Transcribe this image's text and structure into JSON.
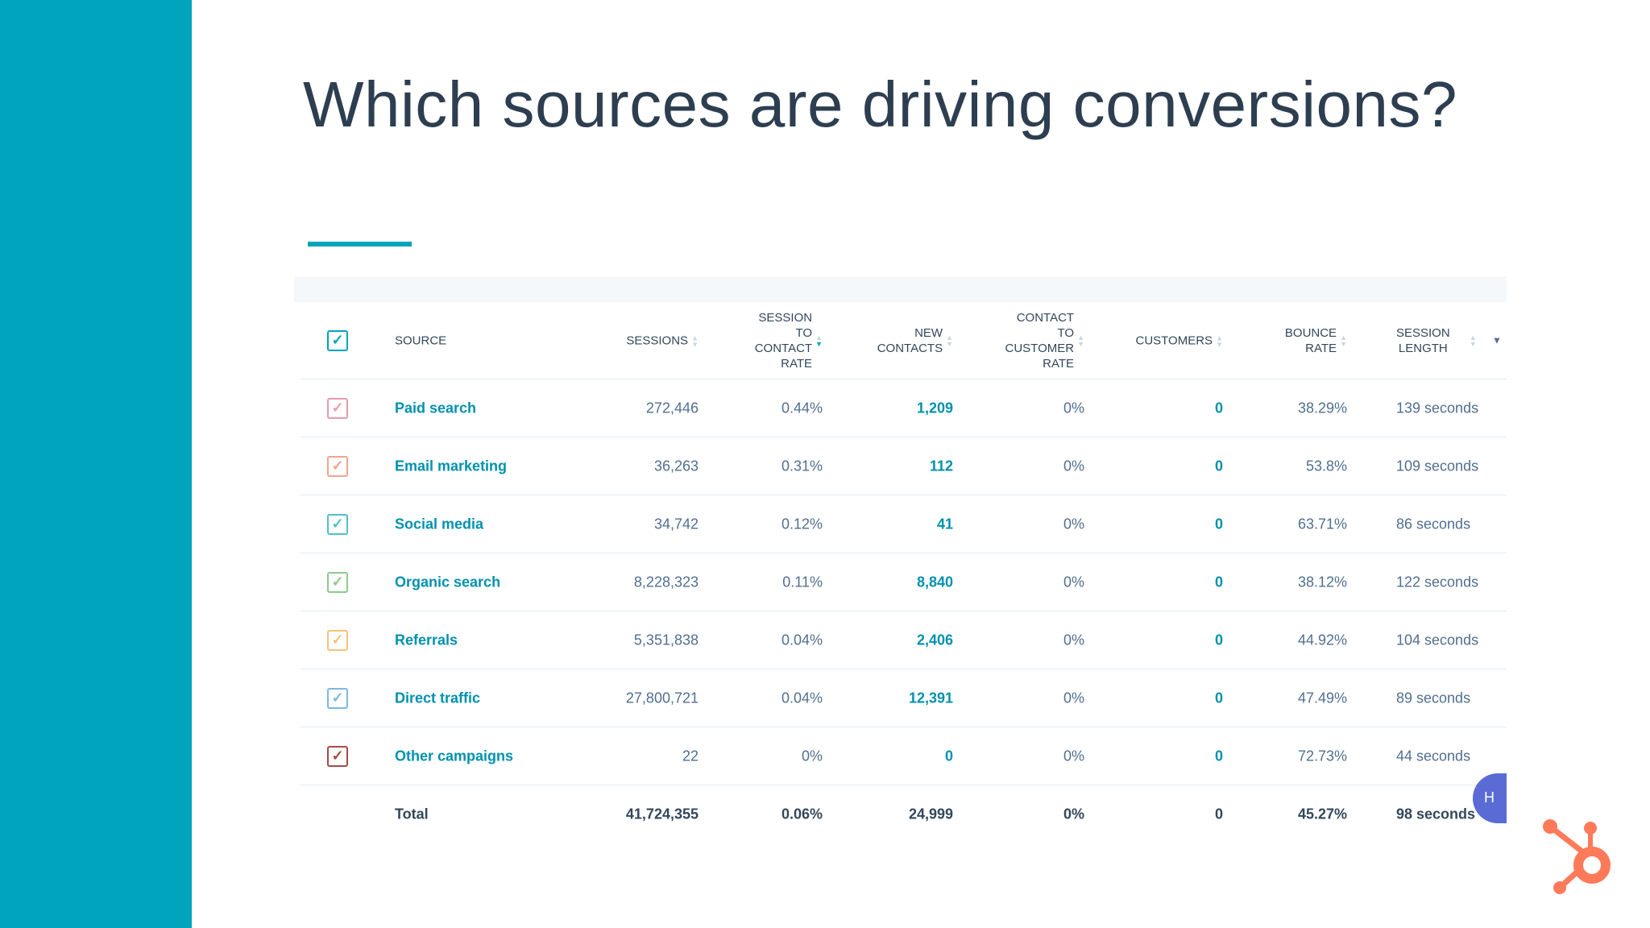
{
  "title": "Which sources are driving conversions?",
  "table": {
    "headers": {
      "source": "SOURCE",
      "sessions": "SESSIONS",
      "stc": [
        "SESSION",
        "TO",
        "CONTACT",
        "RATE"
      ],
      "new_contacts": [
        "NEW",
        "CONTACTS"
      ],
      "ctc": [
        "CONTACT",
        "TO",
        "CUSTOMER",
        "RATE"
      ],
      "customers": "CUSTOMERS",
      "bounce": [
        "BOUNCE",
        "RATE"
      ],
      "length": [
        "SESSION",
        "LENGTH"
      ]
    },
    "rows": [
      {
        "source": "Paid search",
        "sessions": "272,446",
        "stc": "0.44%",
        "new_contacts": "1,209",
        "ctc": "0%",
        "customers": "0",
        "bounce": "38.29%",
        "length": "139 seconds",
        "color": "#e79bb0"
      },
      {
        "source": "Email marketing",
        "sessions": "36,263",
        "stc": "0.31%",
        "new_contacts": "112",
        "ctc": "0%",
        "customers": "0",
        "bounce": "53.8%",
        "length": "109 seconds",
        "color": "#f0a58c"
      },
      {
        "source": "Social media",
        "sessions": "34,742",
        "stc": "0.12%",
        "new_contacts": "41",
        "ctc": "0%",
        "customers": "0",
        "bounce": "63.71%",
        "length": "86 seconds",
        "color": "#4fc1c9"
      },
      {
        "source": "Organic search",
        "sessions": "8,228,323",
        "stc": "0.11%",
        "new_contacts": "8,840",
        "ctc": "0%",
        "customers": "0",
        "bounce": "38.12%",
        "length": "122 seconds",
        "color": "#8fc98a"
      },
      {
        "source": "Referrals",
        "sessions": "5,351,838",
        "stc": "0.04%",
        "new_contacts": "2,406",
        "ctc": "0%",
        "customers": "0",
        "bounce": "44.92%",
        "length": "104 seconds",
        "color": "#f5c27a"
      },
      {
        "source": "Direct traffic",
        "sessions": "27,800,721",
        "stc": "0.04%",
        "new_contacts": "12,391",
        "ctc": "0%",
        "customers": "0",
        "bounce": "47.49%",
        "length": "89 seconds",
        "color": "#7cb8e8"
      },
      {
        "source": "Other campaigns",
        "sessions": "22",
        "stc": "0%",
        "new_contacts": "0",
        "ctc": "0%",
        "customers": "0",
        "bounce": "72.73%",
        "length": "44 seconds",
        "color": "#a84a45"
      }
    ],
    "total": {
      "label": "Total",
      "sessions": "41,724,355",
      "stc": "0.06%",
      "new_contacts": "24,999",
      "ctc": "0%",
      "customers": "0",
      "bounce": "45.27%",
      "length": "98 seconds"
    }
  },
  "chat_label": "H",
  "colors": {
    "accent": "#00a4bd",
    "link": "#0091ae",
    "logo": "#ff7a59"
  }
}
